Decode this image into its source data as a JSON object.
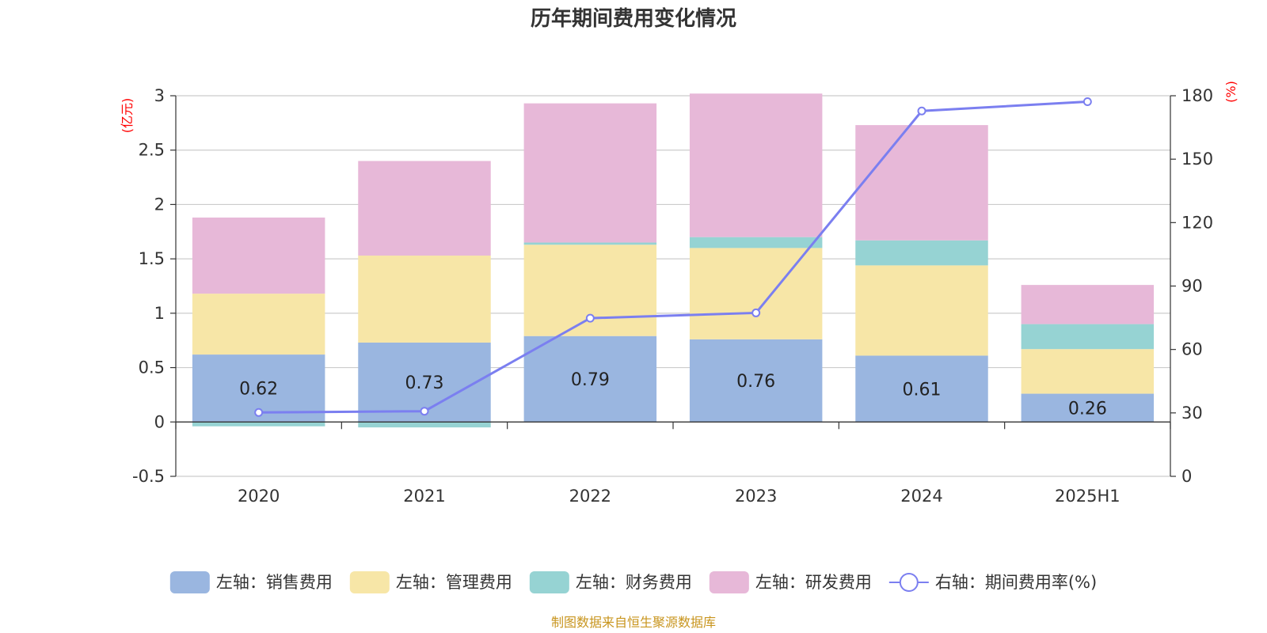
{
  "chart_data": {
    "type": "bar",
    "title": "历年期间费用变化情况",
    "categories": [
      "2020",
      "2021",
      "2022",
      "2023",
      "2024",
      "2025H1"
    ],
    "left_axis": {
      "unit": "(亿元)",
      "ylim": [
        -0.5,
        3
      ],
      "ticks": [
        -0.5,
        0,
        0.5,
        1,
        1.5,
        2,
        2.5,
        3
      ],
      "tick_labels": [
        "-0.5",
        "0",
        "0.5",
        "1",
        "1.5",
        "2",
        "2.5",
        "3"
      ]
    },
    "right_axis": {
      "unit": "(%)",
      "ylim": [
        0,
        180
      ],
      "ticks": [
        0,
        30,
        60,
        90,
        120,
        150,
        180
      ],
      "tick_labels": [
        "0",
        "30",
        "60",
        "90",
        "120",
        "150",
        "180"
      ]
    },
    "series": [
      {
        "name": "左轴：销售费用",
        "type": "bar",
        "axis": "left",
        "color": "#9ab6e0",
        "values": [
          0.62,
          0.73,
          0.79,
          0.76,
          0.61,
          0.26
        ],
        "labels": [
          "0.62",
          "0.73",
          "0.79",
          "0.76",
          "0.61",
          "0.26"
        ]
      },
      {
        "name": "左轴：管理费用",
        "type": "bar",
        "axis": "left",
        "color": "#f7e6a7",
        "values": [
          0.56,
          0.8,
          0.84,
          0.84,
          0.83,
          0.41
        ]
      },
      {
        "name": "左轴：财务费用",
        "type": "bar",
        "axis": "left",
        "color": "#96d3d3",
        "values": [
          -0.04,
          -0.05,
          0.02,
          0.1,
          0.23,
          0.23
        ]
      },
      {
        "name": "左轴：研发费用",
        "type": "bar",
        "axis": "left",
        "color": "#e7b8d8",
        "values": [
          0.7,
          0.87,
          1.28,
          1.32,
          1.06,
          0.36
        ]
      },
      {
        "name": "右轴：期间费用率(%)",
        "type": "line",
        "axis": "right",
        "color": "#7b7ff0",
        "values": [
          30.2,
          30.8,
          74.8,
          77.3,
          172.8,
          177.2
        ]
      }
    ],
    "grid": true,
    "legend_position": "bottom"
  },
  "source_note": "制图数据来自恒生聚源数据库"
}
